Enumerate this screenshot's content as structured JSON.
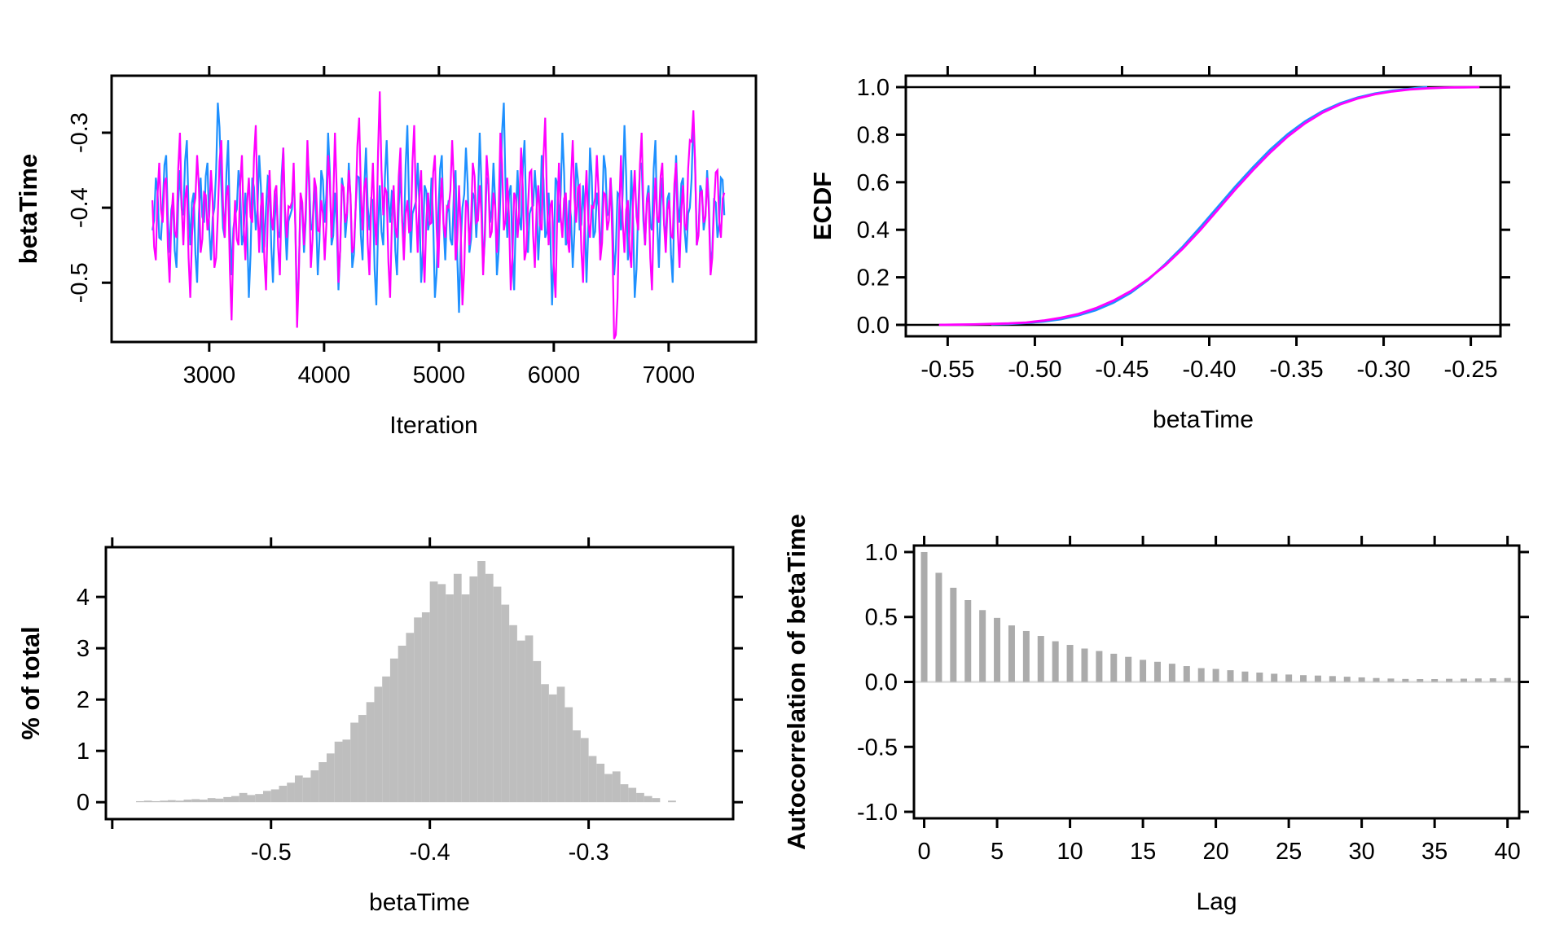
{
  "figure": {
    "background": "#ffffff"
  },
  "colors": {
    "chain1": "#1E90FF",
    "chain2": "#FF00FF",
    "hist_fill": "#BEBEBE",
    "acf_fill": "#ABABAB",
    "axis": "#000000",
    "zero_ref_light": "#DCDCDC"
  },
  "chart_data": [
    {
      "id": "trace",
      "type": "line",
      "title": "",
      "xlabel": "Iteration",
      "ylabel": "betaTime",
      "xlim": [
        2150,
        7760
      ],
      "ylim": [
        -0.579,
        -0.224
      ],
      "xticks": [
        3000,
        4000,
        5000,
        6000,
        7000
      ],
      "xtick_labels": [
        "3000",
        "4000",
        "5000",
        "6000",
        "7000"
      ],
      "yticks": [
        -0.3,
        -0.4,
        -0.5
      ],
      "ytick_labels": [
        "-0.3",
        "-0.4",
        "-0.5"
      ],
      "grid": false,
      "legend": "none",
      "jitter": 0.022,
      "series": [
        {
          "name": "chain1",
          "color_key": "chain1",
          "x0": 2505,
          "dx": 30,
          "y": [
            -0.43,
            -0.36,
            -0.44,
            -0.4,
            -0.33,
            -0.46,
            -0.39,
            -0.48,
            -0.35,
            -0.41,
            -0.31,
            -0.45,
            -0.38,
            -0.5,
            -0.36,
            -0.42,
            -0.34,
            -0.47,
            -0.4,
            -0.26,
            -0.37,
            -0.44,
            -0.31,
            -0.49,
            -0.41,
            -0.35,
            -0.45,
            -0.38,
            -0.52,
            -0.36,
            -0.43,
            -0.33,
            -0.46,
            -0.4,
            -0.36,
            -0.5,
            -0.38,
            -0.44,
            -0.32,
            -0.47,
            -0.41,
            -0.35,
            -0.54,
            -0.39,
            -0.46,
            -0.33,
            -0.43,
            -0.37,
            -0.49,
            -0.35,
            -0.42,
            -0.3,
            -0.45,
            -0.38,
            -0.51,
            -0.36,
            -0.44,
            -0.34,
            -0.48,
            -0.4,
            -0.36,
            -0.47,
            -0.32,
            -0.43,
            -0.39,
            -0.53,
            -0.37,
            -0.45,
            -0.31,
            -0.42,
            -0.38,
            -0.49,
            -0.35,
            -0.44,
            -0.29,
            -0.46,
            -0.4,
            -0.34,
            -0.5,
            -0.37,
            -0.43,
            -0.36,
            -0.52,
            -0.41,
            -0.33,
            -0.47,
            -0.39,
            -0.45,
            -0.35,
            -0.54,
            -0.4,
            -0.32,
            -0.46,
            -0.38,
            -0.44,
            -0.3,
            -0.48,
            -0.36,
            -0.42,
            -0.34,
            -0.49,
            -0.38,
            -0.26,
            -0.44,
            -0.37,
            -0.51,
            -0.35,
            -0.43,
            -0.31,
            -0.46,
            -0.4,
            -0.35,
            -0.47,
            -0.33,
            -0.44,
            -0.38,
            -0.53,
            -0.36,
            -0.42,
            -0.3,
            -0.45,
            -0.39,
            -0.48,
            -0.34,
            -0.43,
            -0.37,
            -0.5,
            -0.32,
            -0.44,
            -0.38,
            -0.46,
            -0.33,
            -0.41,
            -0.36,
            -0.49,
            -0.38,
            -0.43,
            -0.29,
            -0.47,
            -0.35,
            -0.52,
            -0.4,
            -0.34,
            -0.45,
            -0.37,
            -0.43,
            -0.31,
            -0.48,
            -0.36,
            -0.44,
            -0.38,
            -0.5,
            -0.33,
            -0.42,
            -0.36,
            -0.46,
            -0.4,
            -0.28,
            -0.45,
            -0.37,
            -0.43,
            -0.35,
            -0.48,
            -0.39,
            -0.44,
            -0.36,
            -0.41
          ]
        },
        {
          "name": "chain2",
          "color_key": "chain2",
          "x0": 2505,
          "dx": 30,
          "y": [
            -0.39,
            -0.47,
            -0.34,
            -0.42,
            -0.36,
            -0.5,
            -0.38,
            -0.44,
            -0.3,
            -0.45,
            -0.37,
            -0.52,
            -0.4,
            -0.33,
            -0.46,
            -0.38,
            -0.43,
            -0.35,
            -0.48,
            -0.41,
            -0.31,
            -0.44,
            -0.37,
            -0.55,
            -0.39,
            -0.45,
            -0.33,
            -0.47,
            -0.36,
            -0.42,
            -0.29,
            -0.46,
            -0.38,
            -0.51,
            -0.35,
            -0.43,
            -0.37,
            -0.49,
            -0.32,
            -0.44,
            -0.4,
            -0.34,
            -0.56,
            -0.38,
            -0.45,
            -0.31,
            -0.48,
            -0.36,
            -0.43,
            -0.39,
            -0.47,
            -0.33,
            -0.44,
            -0.3,
            -0.5,
            -0.37,
            -0.42,
            -0.35,
            -0.46,
            -0.4,
            -0.28,
            -0.43,
            -0.36,
            -0.49,
            -0.34,
            -0.45,
            -0.245,
            -0.41,
            -0.38,
            -0.52,
            -0.37,
            -0.44,
            -0.32,
            -0.47,
            -0.39,
            -0.43,
            -0.29,
            -0.46,
            -0.35,
            -0.5,
            -0.38,
            -0.42,
            -0.33,
            -0.48,
            -0.36,
            -0.44,
            -0.4,
            -0.31,
            -0.47,
            -0.37,
            -0.53,
            -0.39,
            -0.45,
            -0.34,
            -0.42,
            -0.37,
            -0.49,
            -0.33,
            -0.44,
            -0.38,
            -0.46,
            -0.3,
            -0.43,
            -0.36,
            -0.51,
            -0.38,
            -0.44,
            -0.32,
            -0.47,
            -0.4,
            -0.35,
            -0.48,
            -0.37,
            -0.43,
            -0.28,
            -0.45,
            -0.39,
            -0.52,
            -0.34,
            -0.44,
            -0.38,
            -0.46,
            -0.31,
            -0.42,
            -0.37,
            -0.5,
            -0.35,
            -0.44,
            -0.4,
            -0.33,
            -0.47,
            -0.38,
            -0.43,
            -0.36,
            -0.575,
            -0.52,
            -0.33,
            -0.46,
            -0.39,
            -0.48,
            -0.35,
            -0.43,
            -0.3,
            -0.45,
            -0.38,
            -0.51,
            -0.36,
            -0.42,
            -0.34,
            -0.46,
            -0.39,
            -0.44,
            -0.34,
            -0.48,
            -0.37,
            -0.43,
            -0.31,
            -0.27,
            -0.45,
            -0.38,
            -0.42,
            -0.36,
            -0.49,
            -0.4,
            -0.35,
            -0.44,
            -0.38
          ]
        }
      ]
    },
    {
      "id": "ecdf",
      "type": "line",
      "title": "",
      "xlabel": "betaTime",
      "ylabel": "ECDF",
      "xlim": [
        -0.574,
        -0.233
      ],
      "ylim": [
        -0.048,
        1.048
      ],
      "xticks": [
        -0.55,
        -0.5,
        -0.45,
        -0.4,
        -0.35,
        -0.3,
        -0.25
      ],
      "xtick_labels": [
        "-0.55",
        "-0.50",
        "-0.45",
        "-0.40",
        "-0.35",
        "-0.30",
        "-0.25"
      ],
      "yticks": [
        0,
        0.2,
        0.4,
        0.6,
        0.8,
        1
      ],
      "ytick_labels": [
        "0.0",
        "0.2",
        "0.4",
        "0.6",
        "0.8",
        "1.0"
      ],
      "grid": false,
      "legend": "none",
      "ref_hlines": [
        0,
        1
      ],
      "series": [
        {
          "name": "chain1",
          "color_key": "chain1",
          "x": [
            -0.525,
            -0.515,
            -0.505,
            -0.495,
            -0.485,
            -0.475,
            -0.465,
            -0.455,
            -0.445,
            -0.435,
            -0.425,
            -0.415,
            -0.405,
            -0.395,
            -0.385,
            -0.375,
            -0.365,
            -0.355,
            -0.345,
            -0.335,
            -0.325,
            -0.315,
            -0.305,
            -0.295,
            -0.285,
            -0.28,
            -0.275
          ],
          "y": [
            0.002,
            0.004,
            0.008,
            0.014,
            0.024,
            0.04,
            0.062,
            0.093,
            0.135,
            0.19,
            0.257,
            0.33,
            0.412,
            0.497,
            0.582,
            0.662,
            0.737,
            0.802,
            0.856,
            0.899,
            0.932,
            0.956,
            0.973,
            0.985,
            0.993,
            0.997,
            1.0
          ]
        },
        {
          "name": "chain2",
          "color_key": "chain2",
          "x": [
            -0.555,
            -0.545,
            -0.535,
            -0.525,
            -0.515,
            -0.505,
            -0.495,
            -0.485,
            -0.475,
            -0.465,
            -0.455,
            -0.445,
            -0.435,
            -0.425,
            -0.415,
            -0.405,
            -0.395,
            -0.385,
            -0.375,
            -0.365,
            -0.355,
            -0.345,
            -0.335,
            -0.325,
            -0.315,
            -0.305,
            -0.295,
            -0.285,
            -0.275,
            -0.265,
            -0.255,
            -0.245
          ],
          "y": [
            0.0,
            0.001,
            0.002,
            0.004,
            0.006,
            0.01,
            0.018,
            0.03,
            0.046,
            0.07,
            0.102,
            0.142,
            0.193,
            0.252,
            0.322,
            0.4,
            0.485,
            0.57,
            0.65,
            0.725,
            0.792,
            0.848,
            0.893,
            0.927,
            0.952,
            0.97,
            0.982,
            0.99,
            0.995,
            0.998,
            0.999,
            1.0
          ]
        }
      ]
    },
    {
      "id": "hist",
      "type": "bar",
      "title": "",
      "xlabel": "betaTime",
      "ylabel": "% of total",
      "xlim": [
        -0.604,
        -0.209
      ],
      "ylim": [
        -0.33,
        4.97
      ],
      "xticks": [
        -0.6,
        -0.5,
        -0.4,
        -0.3
      ],
      "xtick_labels": [
        "",
        "-0.5",
        "-0.4",
        "-0.3"
      ],
      "yticks": [
        0,
        1,
        2,
        3,
        4
      ],
      "ytick_labels": [
        "0",
        "1",
        "2",
        "3",
        "4"
      ],
      "grid": false,
      "legend": "none",
      "bin_start": -0.585,
      "bin_width": 0.005,
      "values": [
        0.02,
        0.03,
        0.02,
        0.03,
        0.04,
        0.03,
        0.05,
        0.06,
        0.05,
        0.08,
        0.07,
        0.1,
        0.12,
        0.18,
        0.14,
        0.16,
        0.22,
        0.25,
        0.32,
        0.38,
        0.52,
        0.48,
        0.62,
        0.78,
        0.95,
        1.18,
        1.22,
        1.55,
        1.7,
        1.95,
        2.25,
        2.45,
        2.8,
        3.05,
        3.3,
        3.6,
        3.7,
        4.3,
        4.25,
        4.05,
        4.45,
        4.05,
        4.4,
        4.7,
        4.45,
        4.2,
        3.85,
        3.45,
        3.15,
        3.25,
        2.75,
        2.3,
        2.1,
        2.25,
        1.85,
        1.4,
        1.25,
        0.9,
        0.75,
        0.55,
        0.6,
        0.35,
        0.28,
        0.18,
        0.12,
        0.08,
        0.0,
        0.03
      ]
    },
    {
      "id": "acf",
      "type": "bar",
      "title": "",
      "xlabel": "Lag",
      "ylabel": "Autocorrelation of betaTime",
      "xlim": [
        -0.7,
        40.8
      ],
      "ylim": [
        -1.05,
        1.05
      ],
      "xticks": [
        0,
        5,
        10,
        15,
        20,
        25,
        30,
        35,
        40
      ],
      "xtick_labels": [
        "0",
        "5",
        "10",
        "15",
        "20",
        "25",
        "30",
        "35",
        "40"
      ],
      "yticks": [
        -1,
        -0.5,
        0,
        0.5,
        1
      ],
      "ytick_labels": [
        "-1.0",
        "-0.5",
        "0.0",
        "0.5",
        "1.0"
      ],
      "grid": false,
      "legend": "none",
      "zero_line": 0,
      "lags": [
        0,
        1,
        2,
        3,
        4,
        5,
        6,
        7,
        8,
        9,
        10,
        11,
        12,
        13,
        14,
        15,
        16,
        17,
        18,
        19,
        20,
        21,
        22,
        23,
        24,
        25,
        26,
        27,
        28,
        29,
        30,
        31,
        32,
        33,
        34,
        35,
        36,
        37,
        38,
        39,
        40
      ],
      "values": [
        1,
        0.84,
        0.725,
        0.63,
        0.553,
        0.493,
        0.435,
        0.392,
        0.354,
        0.313,
        0.285,
        0.257,
        0.238,
        0.217,
        0.193,
        0.17,
        0.155,
        0.14,
        0.122,
        0.106,
        0.1,
        0.09,
        0.08,
        0.072,
        0.063,
        0.057,
        0.052,
        0.049,
        0.045,
        0.04,
        0.035,
        0.03,
        0.026,
        0.023,
        0.022,
        0.022,
        0.024,
        0.025,
        0.027,
        0.028,
        0.03
      ]
    }
  ]
}
